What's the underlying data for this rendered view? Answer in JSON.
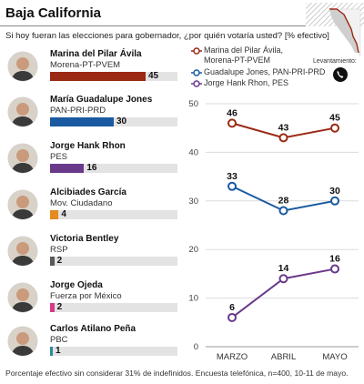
{
  "header": {
    "title": "Baja California",
    "question": "Si hoy fueran las elecciones para gobernador, ¿por quién votaría usted? [% efectivo]"
  },
  "levantamiento_label": "Levantamiento:",
  "icons": {
    "map": "baja-california-map-icon",
    "phone": "phone-icon"
  },
  "candidates": [
    {
      "name": "Marina del Pilar Ávila",
      "party": "Morena-PT-PVEM",
      "value": 45,
      "value_label": "45",
      "color": "#9b2a14"
    },
    {
      "name": "María Guadalupe Jones",
      "party": "PAN-PRI-PRD",
      "value": 30,
      "value_label": "30",
      "color": "#1a5aa0"
    },
    {
      "name": "Jorge Hank Rhon",
      "party": "PES",
      "value": 16,
      "value_label": "16",
      "color": "#6a3a8a"
    },
    {
      "name": "Alcibiades García",
      "party": "Mov. Ciudadano",
      "value": 4,
      "value_label": "4",
      "color": "#e48a1f"
    },
    {
      "name": "Victoria Bentley",
      "party": "RSP",
      "value": 2,
      "value_label": "2",
      "color": "#5a5a5a"
    },
    {
      "name": "Jorge Ojeda",
      "party": "Fuerza por México",
      "value": 2,
      "value_label": "2",
      "color": "#d63a8a"
    },
    {
      "name": "Carlos Atilano Peña",
      "party": "PBC",
      "value": 1,
      "value_label": "1",
      "color": "#2a8a9a"
    }
  ],
  "legend": [
    {
      "line1": "Marina del Pilar Ávila,",
      "line2": "Morena-PT-PVEM",
      "color": "#9b2a14"
    },
    {
      "line1": "Guadalupe Jones, PAN-PRI-PRD",
      "line2": "",
      "color": "#1a5aa0"
    },
    {
      "line1": "Jorge Hank Rhon, PES",
      "line2": "",
      "color": "#6a3a8a"
    }
  ],
  "chart_data": {
    "type": "line",
    "categories": [
      "MARZO",
      "ABRIL",
      "MAYO"
    ],
    "ylim": [
      0,
      50
    ],
    "yticks": [
      0,
      10,
      20,
      30,
      40,
      50
    ],
    "grid": true,
    "series": [
      {
        "name": "Marina del Pilar Ávila, Morena-PT-PVEM",
        "values": [
          46,
          43,
          45
        ],
        "color": "#9b2a14"
      },
      {
        "name": "Guadalupe Jones, PAN-PRI-PRD",
        "values": [
          33,
          28,
          30
        ],
        "color": "#1a5aa0"
      },
      {
        "name": "Jorge Hank Rhon, PES",
        "values": [
          6,
          14,
          16
        ],
        "color": "#6a3a8a"
      }
    ]
  },
  "footnote": "Porcentaje efectivo sin considerar 31% de indefinidos. Encuesta telefónica, n=400, 10-11 de mayo."
}
